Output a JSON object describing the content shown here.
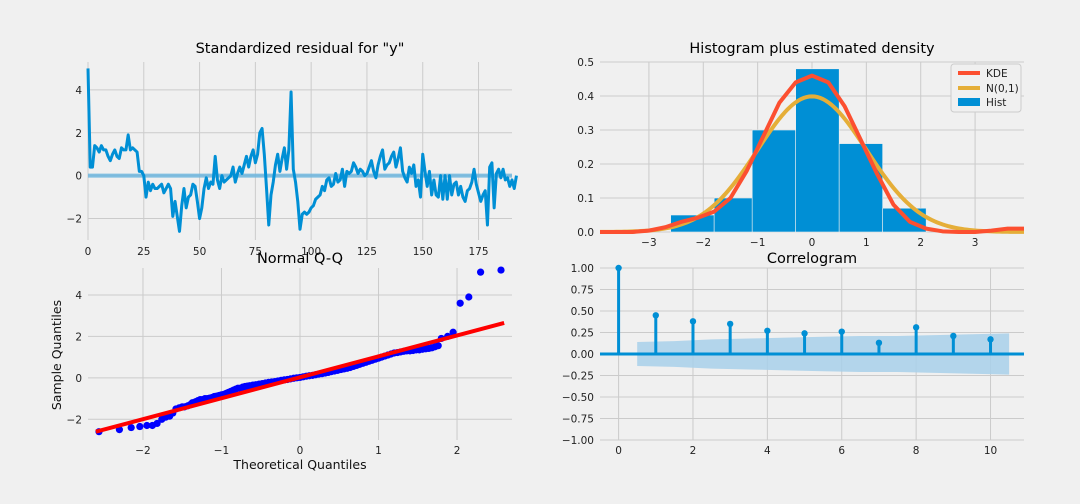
{
  "figure_background": "#f0f0f0",
  "chart_data": [
    {
      "type": "line",
      "title": "Standardized residual for \"y\"",
      "xlabel": "",
      "ylabel": "",
      "xlim": [
        0,
        190
      ],
      "ylim": [
        -3,
        5.3
      ],
      "x_ticks": [
        0,
        25,
        50,
        75,
        100,
        125,
        150,
        175
      ],
      "y_ticks": [
        -2,
        0,
        2,
        4
      ],
      "grid": true,
      "colors": {
        "line": "#008fd5",
        "zero_line": "#6eb6de"
      },
      "series": [
        {
          "values": [
            5.0,
            0.4,
            0.4,
            1.4,
            1.3,
            1.1,
            1.4,
            1.2,
            1.2,
            0.9,
            0.7,
            1.0,
            1.2,
            0.9,
            0.8,
            1.3,
            1.2,
            1.2,
            1.9,
            1.2,
            1.3,
            1.2,
            1.1,
            0.2,
            0.2,
            0.0,
            -1.0,
            -0.3,
            -0.7,
            -0.4,
            -0.6,
            -0.6,
            -0.5,
            -0.4,
            -0.8,
            -0.6,
            -0.4,
            -0.6,
            -1.9,
            -1.2,
            -1.9,
            -2.6,
            -1.4,
            -0.6,
            -1.5,
            -1.0,
            -0.9,
            -0.4,
            -0.5,
            -1.2,
            -2.0,
            -1.5,
            -0.6,
            -0.1,
            -0.6,
            -0.3,
            -0.4,
            0.9,
            -0.2,
            -0.6,
            0.0,
            -0.3,
            -0.2,
            -0.1,
            0.0,
            0.4,
            -0.3,
            0.1,
            0.4,
            0.1,
            0.5,
            0.9,
            0.4,
            0.9,
            1.2,
            0.6,
            1.0,
            2.0,
            2.2,
            1.0,
            -0.6,
            -2.3,
            -0.9,
            -0.3,
            0.5,
            1.0,
            0.2,
            0.8,
            1.3,
            0.3,
            1.2,
            3.9,
            0.3,
            -0.3,
            -1.2,
            -2.5,
            -1.8,
            -1.7,
            -1.8,
            -1.7,
            -1.5,
            -1.4,
            -1.1,
            -1.0,
            -0.9,
            -0.5,
            -0.7,
            -0.2,
            -0.1,
            -0.5,
            -0.4,
            0.1,
            -0.3,
            -0.2,
            0.3,
            -0.5,
            0.2,
            0.1,
            0.2,
            0.6,
            0.4,
            0.1,
            0.3,
            0.2,
            0.0,
            0.1,
            0.4,
            0.7,
            0.2,
            -0.1,
            0.5,
            0.9,
            1.2,
            0.3,
            0.5,
            0.6,
            0.9,
            1.1,
            0.4,
            0.8,
            1.3,
            0.2,
            -0.1,
            -0.3,
            0.4,
            0.1,
            0.5,
            -0.5,
            -0.2,
            -1.0,
            1.0,
            0.2,
            -0.5,
            0.2,
            -0.9,
            -0.2,
            -0.9,
            -1.0,
            0.0,
            -1.1,
            0.0,
            -1.1,
            0.0,
            -0.9,
            -0.4,
            -0.3,
            -0.9,
            -0.5,
            -1.0,
            -1.2,
            -0.7,
            -0.6,
            -0.3,
            0.3,
            -0.4,
            -0.8,
            -1.2,
            -0.9,
            -0.7,
            -2.3,
            0.4,
            0.6,
            -1.5,
            0.1,
            0.3,
            -0.1,
            0.3,
            -0.2,
            -0.1,
            -0.5,
            -0.2,
            -0.6,
            0.0
          ]
        }
      ]
    },
    {
      "type": "bar",
      "title": "Histogram plus estimated density",
      "xlabel": "",
      "ylabel": "",
      "xlim": [
        -3.9,
        3.9
      ],
      "ylim": [
        0,
        0.5
      ],
      "x_ticks": [
        -3,
        -2,
        -1,
        0,
        1,
        2,
        3
      ],
      "y_ticks": [
        0.0,
        0.1,
        0.2,
        0.3,
        0.4,
        0.5
      ],
      "grid": true,
      "legend_position": "top-right",
      "bin_edges": [
        -2.6,
        -1.8,
        -1.1,
        -0.3,
        0.5,
        1.3,
        2.1
      ],
      "values": [
        0.05,
        0.1,
        0.3,
        0.48,
        0.26,
        0.07
      ],
      "kde": {
        "x": [
          -3.9,
          -3.6,
          -3.3,
          -3.0,
          -2.7,
          -2.4,
          -2.1,
          -1.8,
          -1.5,
          -1.2,
          -0.9,
          -0.6,
          -0.3,
          0.0,
          0.3,
          0.6,
          0.9,
          1.2,
          1.5,
          1.8,
          2.1,
          2.4,
          2.7,
          3.0,
          3.3,
          3.6,
          3.9
        ],
        "y": [
          0.0,
          0.0,
          0.0,
          0.004,
          0.014,
          0.03,
          0.042,
          0.06,
          0.1,
          0.18,
          0.28,
          0.38,
          0.44,
          0.46,
          0.44,
          0.37,
          0.27,
          0.17,
          0.08,
          0.03,
          0.01,
          0.002,
          0.0,
          0.0,
          0.004,
          0.01,
          0.01
        ]
      },
      "series": [
        {
          "name": "KDE",
          "color": "#fc4f30"
        },
        {
          "name": "N(0,1)",
          "color": "#e5ae38"
        },
        {
          "name": "Hist",
          "color": "#008fd5"
        }
      ]
    },
    {
      "type": "scatter",
      "title": "Normal Q-Q",
      "xlabel": "Theoretical Quantiles",
      "ylabel": "Sample Quantiles",
      "xlim": [
        -2.7,
        2.7
      ],
      "ylim": [
        -3.0,
        5.3
      ],
      "x_ticks": [
        -2,
        -1,
        0,
        1,
        2
      ],
      "y_ticks": [
        -2,
        0,
        2,
        4
      ],
      "grid": true,
      "colors": {
        "points": "#0000ff",
        "reference_line": "#ff0000"
      },
      "reference_line": {
        "x": [
          -2.6,
          2.6
        ],
        "y": [
          -2.6,
          2.65
        ]
      },
      "points": {
        "x": [
          -2.56,
          -2.3,
          -2.15,
          -2.04,
          -1.95,
          -1.88,
          -1.82,
          -1.76,
          -1.71,
          -1.66,
          -1.62,
          -1.58,
          -1.54,
          -1.5,
          -1.47,
          -1.43,
          -1.4,
          -1.37,
          -1.33,
          -1.3,
          -1.27,
          -1.24,
          -1.21,
          -1.18,
          -1.15,
          -1.12,
          -1.09,
          -1.06,
          -1.03,
          -1.0,
          -0.97,
          -0.94,
          -0.91,
          -0.88,
          -0.85,
          -0.82,
          -0.79,
          -0.76,
          -0.73,
          -0.7,
          -0.67,
          -0.64,
          -0.6,
          -0.56,
          -0.52,
          -0.48,
          -0.44,
          -0.4,
          -0.36,
          -0.32,
          -0.28,
          -0.24,
          -0.2,
          -0.16,
          -0.12,
          -0.08,
          -0.04,
          0.0,
          0.04,
          0.08,
          0.12,
          0.16,
          0.2,
          0.24,
          0.28,
          0.32,
          0.36,
          0.4,
          0.44,
          0.48,
          0.52,
          0.56,
          0.6,
          0.64,
          0.68,
          0.72,
          0.76,
          0.8,
          0.84,
          0.88,
          0.92,
          0.96,
          1.0,
          1.04,
          1.08,
          1.12,
          1.16,
          1.2,
          1.24,
          1.28,
          1.32,
          1.36,
          1.4,
          1.44,
          1.48,
          1.52,
          1.56,
          1.6,
          1.64,
          1.68,
          1.72,
          1.76,
          1.8,
          1.88,
          1.95,
          2.04,
          2.15,
          2.3,
          2.56
        ],
        "y": [
          -2.6,
          -2.5,
          -2.4,
          -2.35,
          -2.3,
          -2.3,
          -2.2,
          -2.0,
          -1.9,
          -1.85,
          -1.7,
          -1.5,
          -1.45,
          -1.4,
          -1.4,
          -1.35,
          -1.3,
          -1.2,
          -1.15,
          -1.1,
          -1.05,
          -1.05,
          -1.0,
          -1.0,
          -0.98,
          -0.95,
          -0.9,
          -0.88,
          -0.85,
          -0.82,
          -0.8,
          -0.75,
          -0.7,
          -0.65,
          -0.6,
          -0.55,
          -0.5,
          -0.5,
          -0.45,
          -0.42,
          -0.4,
          -0.38,
          -0.35,
          -0.33,
          -0.3,
          -0.28,
          -0.25,
          -0.22,
          -0.2,
          -0.18,
          -0.15,
          -0.12,
          -0.1,
          -0.08,
          -0.05,
          -0.02,
          0.0,
          0.02,
          0.05,
          0.08,
          0.1,
          0.12,
          0.15,
          0.18,
          0.2,
          0.23,
          0.26,
          0.3,
          0.33,
          0.36,
          0.4,
          0.43,
          0.46,
          0.5,
          0.55,
          0.6,
          0.65,
          0.7,
          0.75,
          0.8,
          0.85,
          0.9,
          0.95,
          1.0,
          1.05,
          1.1,
          1.15,
          1.2,
          1.22,
          1.25,
          1.28,
          1.3,
          1.3,
          1.32,
          1.35,
          1.35,
          1.38,
          1.4,
          1.42,
          1.45,
          1.5,
          1.55,
          1.9,
          2.0,
          2.2,
          3.6,
          3.9,
          5.1,
          5.2
        ]
      }
    },
    {
      "type": "bar",
      "title": "Correlogram",
      "xlabel": "",
      "ylabel": "",
      "xlim": [
        -0.5,
        10.9
      ],
      "ylim": [
        -1.0,
        1.0
      ],
      "x_ticks": [
        0,
        2,
        4,
        6,
        8,
        10
      ],
      "y_ticks": [
        -1.0,
        -0.75,
        -0.5,
        -0.25,
        0.0,
        0.25,
        0.5,
        0.75,
        1.0
      ],
      "y_tick_labels": [
        "−1.00",
        "−0.75",
        "−0.50",
        "−0.25",
        "0.00",
        "0.25",
        "0.50",
        "0.75",
        "1.00"
      ],
      "grid": true,
      "colors": {
        "stems": "#008fd5",
        "confidence_band": "#a8d0ea"
      },
      "categories": [
        0,
        1,
        2,
        3,
        4,
        5,
        6,
        7,
        8,
        9,
        10
      ],
      "values": [
        1.0,
        0.45,
        0.38,
        0.35,
        0.27,
        0.24,
        0.26,
        0.13,
        0.31,
        0.21,
        0.17
      ],
      "confidence_band": {
        "x": [
          0.5,
          1.5,
          2.5,
          3.5,
          4.5,
          5.5,
          6.5,
          7.5,
          8.5,
          9.5,
          10.5
        ],
        "upper": [
          0.14,
          0.15,
          0.17,
          0.18,
          0.19,
          0.2,
          0.21,
          0.21,
          0.22,
          0.23,
          0.24
        ]
      }
    }
  ]
}
